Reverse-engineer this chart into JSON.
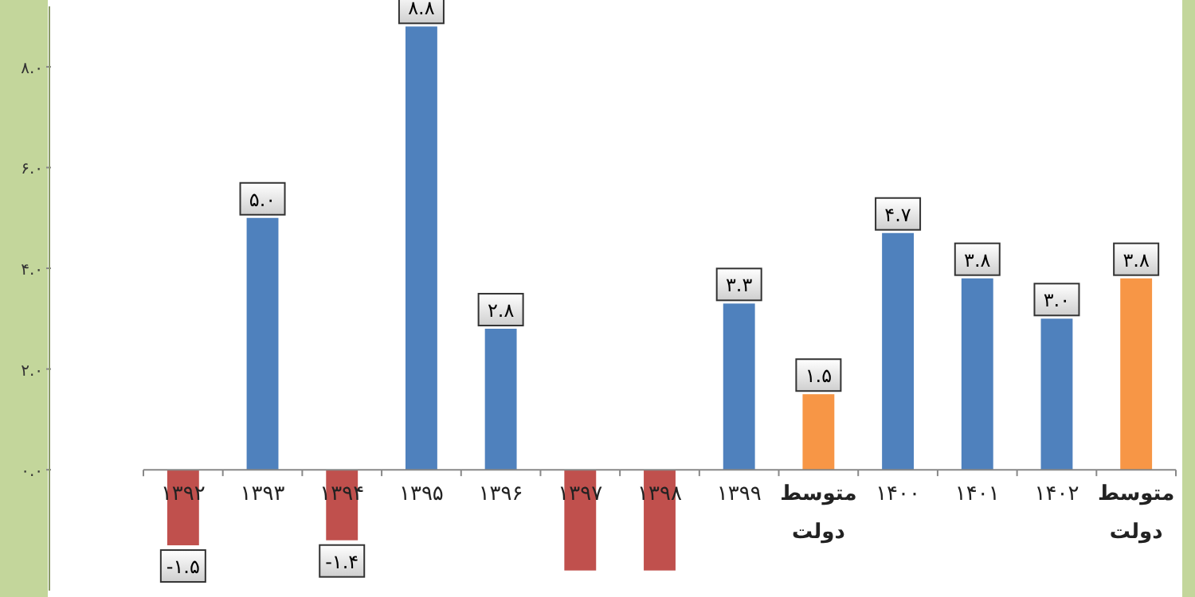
{
  "chart_data": {
    "type": "bar",
    "categories": [
      "۱۳۹۲",
      "۱۳۹۳",
      "۱۳۹۴",
      "۱۳۹۵",
      "۱۳۹۶",
      "۱۳۹۷",
      "۱۳۹۸",
      "۱۳۹۹",
      "متوسط دولت",
      "۱۴۰۰",
      "۱۴۰۱",
      "۱۴۰۲",
      "متوسط دولت"
    ],
    "values": [
      -1.5,
      5.0,
      -1.4,
      8.8,
      2.8,
      -2.0,
      -2.0,
      3.3,
      1.5,
      4.7,
      3.8,
      3.0,
      3.8
    ],
    "value_labels": [
      "-۱.۵",
      "۵.۰",
      "-۱.۴",
      "۸.۸",
      "۲.۸",
      null,
      null,
      "۳.۳",
      "۱.۵",
      "۴.۷",
      "۳.۸",
      "۳.۰",
      "۳.۸"
    ],
    "colors": [
      "#c0504d",
      "#4f81bd",
      "#c0504d",
      "#4f81bd",
      "#4f81bd",
      "#c0504d",
      "#c0504d",
      "#4f81bd",
      "#f79646",
      "#4f81bd",
      "#4f81bd",
      "#4f81bd",
      "#f79646"
    ],
    "ylim": [
      -2.4,
      9.2
    ],
    "yticks": [
      {
        "value": 0,
        "label": "۰.۰"
      },
      {
        "value": 2,
        "label": "۲.۰"
      },
      {
        "value": 4,
        "label": "۴.۰"
      },
      {
        "value": 6,
        "label": "۶.۰"
      },
      {
        "value": 8,
        "label": "۸.۰"
      }
    ],
    "grid": false
  }
}
